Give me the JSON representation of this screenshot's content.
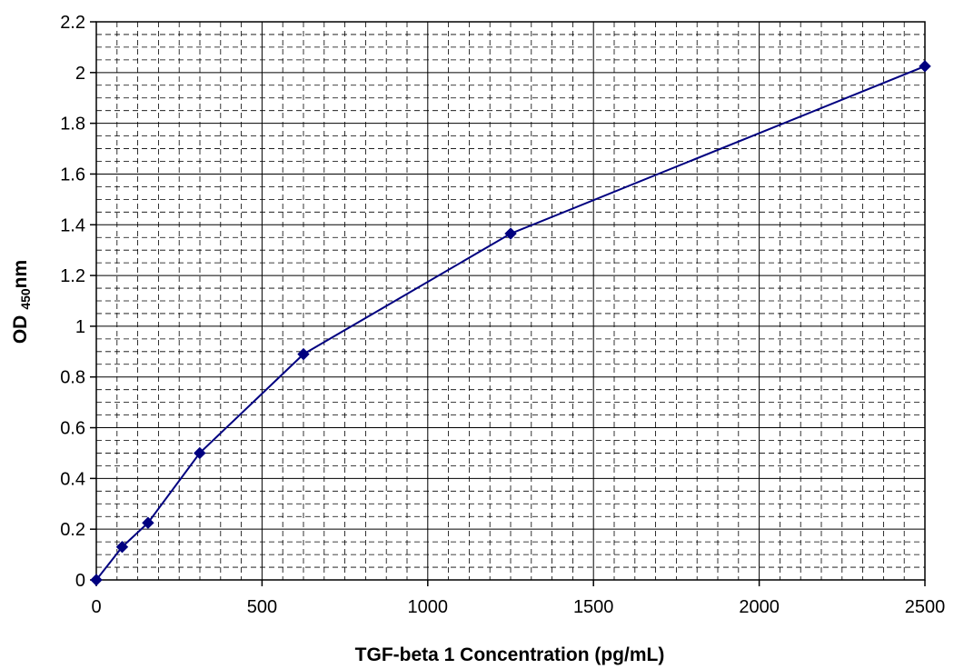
{
  "chart_data": {
    "type": "line",
    "xlabel": "TGF-beta 1 Concentration (pg/mL)",
    "ylabel_main": "OD",
    "ylabel_subscript": "450",
    "ylabel_suffix": "nm",
    "xlim": [
      0,
      2500
    ],
    "ylim": [
      0,
      2.2
    ],
    "x_major_ticks": [
      0,
      500,
      1000,
      1500,
      2000,
      2500
    ],
    "x_tick_labels": [
      "0",
      "500",
      "1000",
      "1500",
      "2000",
      "2500"
    ],
    "y_major_ticks": [
      0,
      0.2,
      0.4,
      0.6,
      0.8,
      1,
      1.2,
      1.4,
      1.6,
      1.8,
      2,
      2.2
    ],
    "y_tick_labels": [
      "0",
      "0.2",
      "0.4",
      "0.6",
      "0.8",
      "1",
      "1.2",
      "1.4",
      "1.6",
      "1.8",
      "2",
      "2.2"
    ],
    "x_minor_step": 62.5,
    "y_minor_step": 0.05,
    "grid": true,
    "series": [
      {
        "color": "#000080",
        "marker": "diamond",
        "x": [
          0,
          78,
          156,
          312,
          625,
          1250,
          2500
        ],
        "y": [
          0.0,
          0.13,
          0.225,
          0.5,
          0.89,
          1.365,
          2.025
        ]
      }
    ]
  }
}
